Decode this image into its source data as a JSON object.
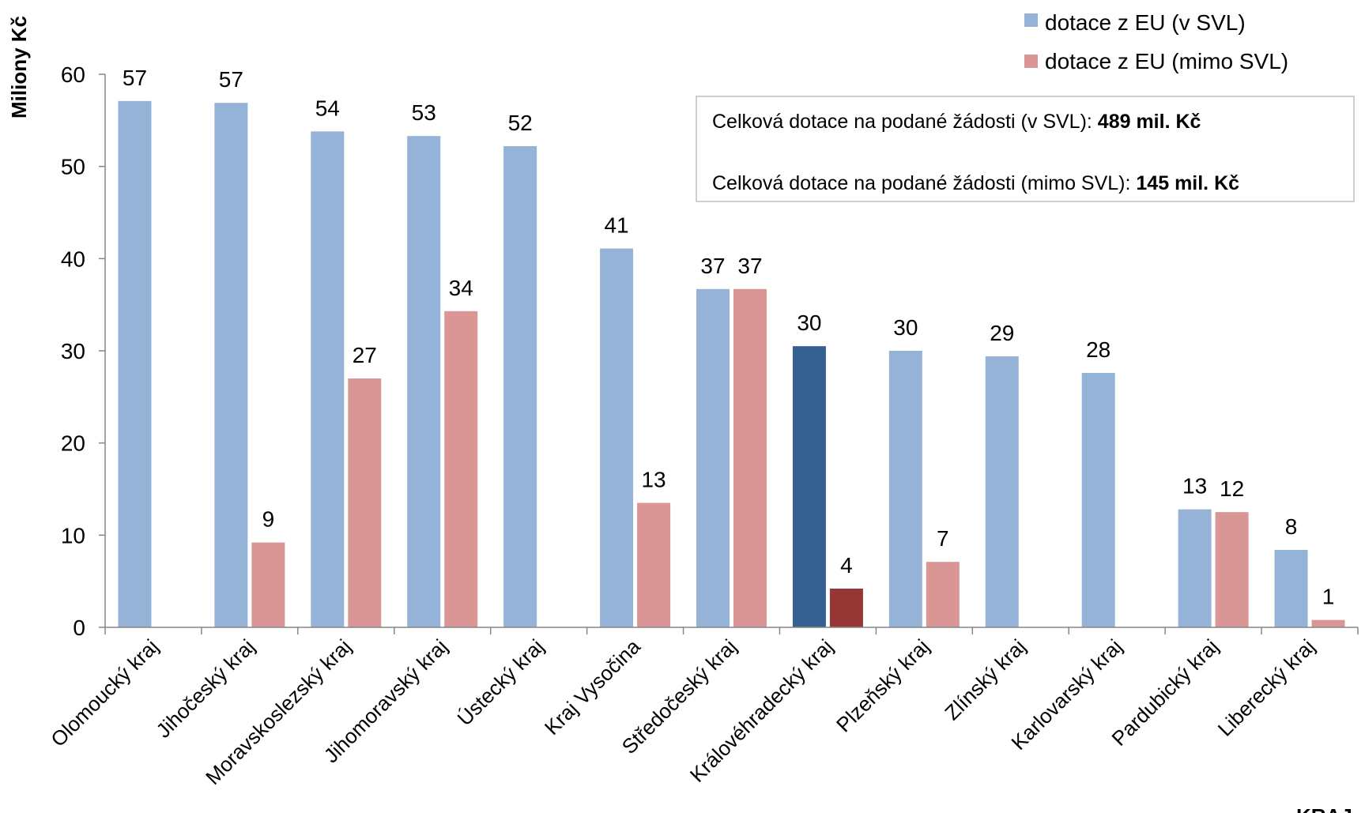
{
  "chart_data": {
    "type": "bar",
    "ylabel": "Miliony Kč",
    "xlabel": "KRAJ",
    "ylim": [
      0,
      60
    ],
    "yticks": [
      0,
      10,
      20,
      30,
      40,
      50,
      60
    ],
    "grid": false,
    "legend_position": "top-right",
    "categories": [
      "Olomoucký kraj",
      "Jihočeský kraj",
      "Moravskoslezský kraj",
      "Jihomoravský kraj",
      "Ústecký kraj",
      "Kraj Vysočina",
      "Středočeský kraj",
      "Královéhradecký kraj",
      "Plzeňský kraj",
      "Zlínský kraj",
      "Karlovarský kraj",
      "Pardubický kraj",
      "Liberecký kraj"
    ],
    "series": [
      {
        "name": "dotace z EU (v SVL)",
        "color": "#95b3d7",
        "highlight_color": "#366092",
        "values": [
          57.1,
          56.9,
          53.8,
          53.3,
          52.2,
          41.1,
          36.7,
          30.5,
          30.0,
          29.4,
          27.6,
          12.8,
          8.4
        ],
        "labels": [
          "57",
          "57",
          "54",
          "53",
          "52",
          "41",
          "37",
          "30",
          "30",
          "29",
          "28",
          "13",
          "8"
        ]
      },
      {
        "name": "dotace z EU (mimo SVL)",
        "color": "#d99694",
        "highlight_color": "#953735",
        "values": [
          null,
          9.2,
          27.0,
          34.3,
          null,
          13.5,
          36.7,
          4.2,
          7.1,
          null,
          null,
          12.5,
          0.8
        ],
        "labels": [
          "",
          "9",
          "27",
          "34",
          "",
          "13",
          "37",
          "4",
          "7",
          "",
          "",
          "12",
          "1"
        ]
      }
    ],
    "highlight_category_index": 7,
    "annotations": [
      {
        "text": "Celková dotace na podané žádosti (v SVL): ",
        "bold": "489 mil. Kč"
      },
      {
        "text": "Celková dotace na podané žádosti (mimo SVL): ",
        "bold": "145 mil. Kč"
      }
    ]
  }
}
